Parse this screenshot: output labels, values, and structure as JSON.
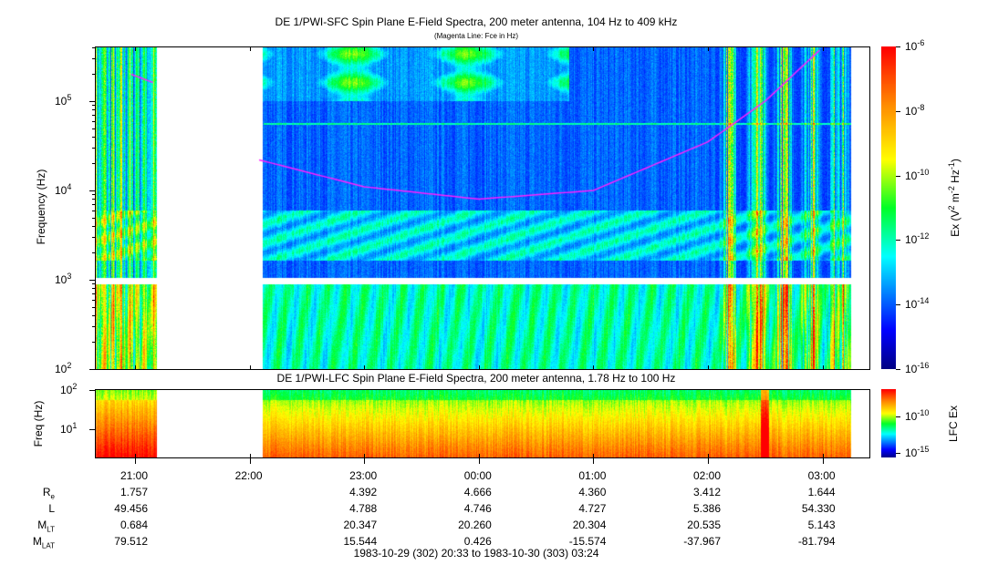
{
  "chart_data": [
    {
      "type": "heatmap",
      "title": "DE 1/PWI-SFC  Spin Plane E-Field Spectra, 200 meter antenna, 104 Hz to 409 kHz",
      "subtitle": "(Magenta Line: Fce in Hz)",
      "ylabel": "Frequency (Hz)",
      "yscale": "log",
      "ylim": [
        104,
        409000
      ],
      "yticks": [
        "10^2",
        "10^3",
        "10^4",
        "10^5"
      ],
      "xticks": [
        "21:00",
        "22:00",
        "23:00",
        "00:00",
        "01:00",
        "02:00",
        "03:00"
      ],
      "data_gap": [
        "21:10",
        "22:05"
      ],
      "colorbar": {
        "label": "Ex (V^2 m^-2 Hz^-1)",
        "range": [
          1e-16,
          1e-06
        ],
        "ticks": [
          "10^-6",
          "10^-8",
          "10^-10",
          "10^-12",
          "10^-14",
          "10^-16"
        ]
      },
      "overlay_line": {
        "name": "Fce",
        "color": "#ff20ff",
        "points": [
          [
            "20:58",
            200000
          ],
          [
            "21:10",
            160000
          ],
          [
            "22:05",
            22000
          ],
          [
            "23:00",
            11000
          ],
          [
            "00:00",
            8000
          ],
          [
            "01:00",
            10000
          ],
          [
            "02:00",
            35000
          ],
          [
            "02:30",
            100000
          ],
          [
            "03:00",
            400000
          ]
        ]
      }
    },
    {
      "type": "heatmap",
      "title": "DE 1/PWI-LFC  Spin Plane E-Field Spectra, 200 meter antenna, 1.78 Hz to 100 Hz",
      "ylabel": "Freq (Hz)",
      "yscale": "log",
      "ylim": [
        1.78,
        100
      ],
      "yticks": [
        "10^1",
        "10^2"
      ],
      "colorbar": {
        "label": "LFC Ex",
        "ticks": [
          "10^-10",
          "10^-15"
        ]
      }
    }
  ],
  "ephemeris": {
    "row_labels": [
      "R",
      "L",
      "M",
      "M"
    ],
    "row_subs": [
      "e",
      "",
      "LT",
      "LAT"
    ],
    "columns": [
      {
        "time": "21:00",
        "re": "1.757",
        "l": "49.456",
        "mlt": "0.684",
        "mlat": "79.512"
      },
      {
        "time": "22:00",
        "re": "",
        "l": "",
        "mlt": "",
        "mlat": ""
      },
      {
        "time": "23:00",
        "re": "4.392",
        "l": "4.788",
        "mlt": "20.347",
        "mlat": "15.544"
      },
      {
        "time": "00:00",
        "re": "4.666",
        "l": "4.746",
        "mlt": "20.260",
        "mlat": "0.426"
      },
      {
        "time": "01:00",
        "re": "4.360",
        "l": "4.727",
        "mlt": "20.304",
        "mlat": "-15.574"
      },
      {
        "time": "02:00",
        "re": "3.412",
        "l": "5.386",
        "mlt": "20.535",
        "mlat": "-37.967"
      },
      {
        "time": "03:00",
        "re": "1.644",
        "l": "54.330",
        "mlt": "5.143",
        "mlat": "-81.794"
      }
    ]
  },
  "time_range": "1983-10-29 (302) 20:33 to 1983-10-30 (303) 03:24"
}
